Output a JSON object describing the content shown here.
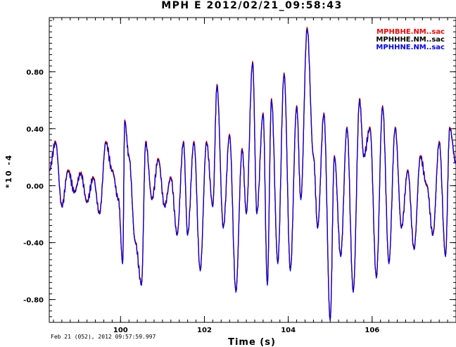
{
  "chart_data": {
    "type": "line",
    "title": "MPH E 2012/02/21_09:58:43",
    "xlabel": "Time (s)",
    "ylabel": "*10 -4",
    "footer": "Feb 21 (052), 2012 09:57:59.997",
    "xlim": [
      98.3,
      108.0
    ],
    "ylim": [
      -0.96,
      1.18
    ],
    "x_ticks": [
      100,
      102,
      104,
      106
    ],
    "x_tick_labels": [
      "100",
      "102",
      "104",
      "106"
    ],
    "y_ticks": [
      0.8,
      0.4,
      0.0,
      -0.4,
      -0.8
    ],
    "y_tick_labels": [
      "0.80",
      "0.40",
      "0.00",
      "-0.40",
      "-0.80"
    ],
    "grid": false,
    "legend_position": "top-right",
    "series": [
      {
        "name": "MPHBHE.NM..sac",
        "color": "#ff0000"
      },
      {
        "name": "MPHHHE.NM..sac",
        "color": "#000000"
      },
      {
        "name": "MPHHNE.NM..sac",
        "color": "#0000ff"
      }
    ],
    "x": [
      98.3,
      98.45,
      98.6,
      98.75,
      98.9,
      99.05,
      99.2,
      99.35,
      99.5,
      99.65,
      99.8,
      99.95,
      100.05,
      100.1,
      100.2,
      100.35,
      100.5,
      100.6,
      100.75,
      100.9,
      101.05,
      101.2,
      101.35,
      101.5,
      101.6,
      101.75,
      101.9,
      102.05,
      102.2,
      102.3,
      102.45,
      102.6,
      102.75,
      102.9,
      103.0,
      103.15,
      103.25,
      103.4,
      103.5,
      103.6,
      103.75,
      103.9,
      104.05,
      104.2,
      104.3,
      104.45,
      104.6,
      104.7,
      104.85,
      105.0,
      105.1,
      105.25,
      105.4,
      105.55,
      105.7,
      105.8,
      105.95,
      106.1,
      106.25,
      106.4,
      106.55,
      106.7,
      106.85,
      107.0,
      107.15,
      107.3,
      107.45,
      107.6,
      107.75,
      107.85,
      108.0
    ],
    "values": [
      0.1,
      0.3,
      -0.15,
      0.1,
      -0.05,
      0.08,
      -0.12,
      0.05,
      -0.2,
      0.3,
      0.1,
      -0.1,
      -0.55,
      0.45,
      0.2,
      -0.4,
      -0.7,
      0.3,
      -0.1,
      0.18,
      -0.15,
      0.05,
      -0.35,
      0.3,
      -0.35,
      0.3,
      -0.6,
      0.3,
      -0.15,
      0.7,
      -0.3,
      0.35,
      -0.75,
      0.25,
      -0.2,
      0.86,
      -0.2,
      0.5,
      -0.7,
      0.6,
      -0.55,
      0.78,
      -0.6,
      0.55,
      -0.1,
      1.1,
      0.2,
      -0.3,
      0.5,
      -0.95,
      0.2,
      -0.5,
      0.4,
      -0.75,
      0.6,
      0.2,
      0.4,
      -0.65,
      0.55,
      -0.55,
      0.4,
      -0.3,
      0.1,
      -0.45,
      0.2,
      0.0,
      -0.35,
      0.3,
      -0.5,
      0.4,
      0.15
    ]
  }
}
